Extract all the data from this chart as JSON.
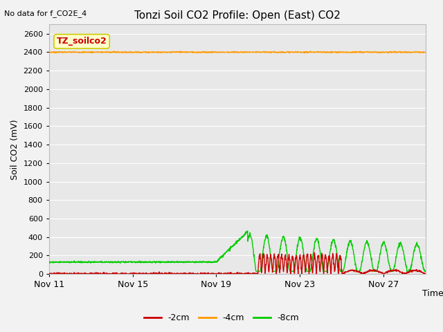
{
  "title": "Tonzi Soil CO2 Profile: Open (East) CO2",
  "no_data_label": "No data for f_CO2E_4",
  "ylabel": "Soil CO2 (mV)",
  "xlabel": "Time",
  "legend_label": "TZ_soilco2",
  "ylim": [
    0,
    2700
  ],
  "yticks": [
    0,
    200,
    400,
    600,
    800,
    1000,
    1200,
    1400,
    1600,
    1800,
    2000,
    2200,
    2400,
    2600
  ],
  "xtick_positions": [
    0,
    4,
    8,
    12,
    16
  ],
  "xtick_labels": [
    "Nov 11",
    "Nov 15",
    "Nov 19",
    "Nov 23",
    "Nov 27"
  ],
  "xlim": [
    0,
    18
  ],
  "bg_color": "#e8e8e8",
  "fig_bg_color": "#f2f2f2",
  "line_2cm_color": "#cc0000",
  "line_4cm_color": "#ff9900",
  "line_8cm_color": "#00cc00",
  "legend_items": [
    "-2cm",
    "-4cm",
    "-8cm"
  ],
  "legend_colors": [
    "#cc0000",
    "#ff9900",
    "#00cc00"
  ],
  "legend_box_facecolor": "#ffffcc",
  "legend_box_edgecolor": "#cccc00"
}
